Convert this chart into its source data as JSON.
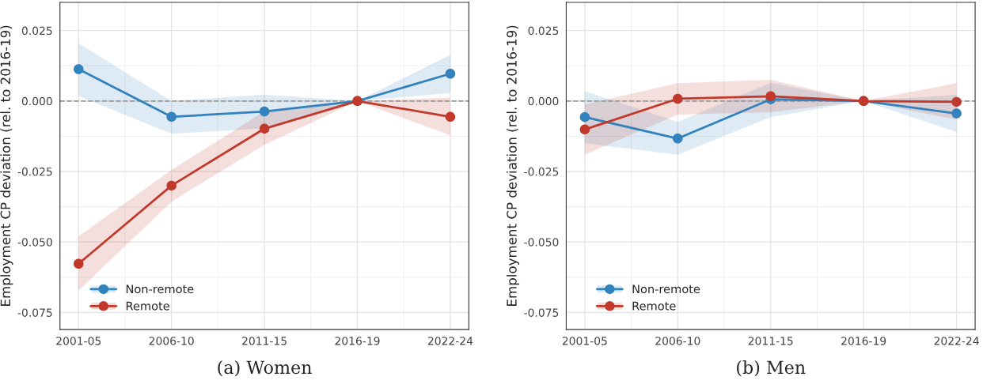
{
  "chart_data": [
    {
      "type": "line",
      "xlabel": "(a) Women",
      "ylabel": "Employment CP deviation (rel. to 2016-19)",
      "categories": [
        "2001-05",
        "2006-10",
        "2011-15",
        "2016-19",
        "2022-24"
      ],
      "ylim": [
        -0.081,
        0.035
      ],
      "yticks": [
        {
          "value": -0.075,
          "label": "-0.075"
        },
        {
          "value": -0.05,
          "label": "-0.050"
        },
        {
          "value": -0.025,
          "label": "-0.025"
        },
        {
          "value": 0,
          "label": "0.000"
        },
        {
          "value": 0.025,
          "label": "0.025"
        }
      ],
      "grid": true,
      "legend": "bottom left",
      "marker": "circle",
      "line_style": "solid",
      "ref_lines": [
        {
          "axis": "y",
          "value": 0,
          "color": "#999999",
          "line_style": "dashed"
        }
      ],
      "series": [
        {
          "name": "Non-remote",
          "color": "#3182bd",
          "values": [
            0.0113,
            -0.0056,
            -0.0037,
            0,
            0.0097
          ],
          "lower": [
            0.0018,
            -0.0116,
            -0.0097,
            0,
            0.0028
          ],
          "upper": [
            0.0205,
            0.0,
            0.0023,
            0,
            0.0164
          ]
        },
        {
          "name": "Remote",
          "color": "#c0392b",
          "values": [
            -0.0577,
            -0.03,
            -0.0098,
            0,
            -0.0056
          ],
          "lower": [
            -0.0672,
            -0.0357,
            -0.0155,
            0,
            -0.0122
          ],
          "upper": [
            -0.048,
            -0.0244,
            -0.0037,
            0,
            0.0012
          ]
        }
      ]
    },
    {
      "type": "line",
      "xlabel": "(b) Men",
      "ylabel": "Employment CP deviation (rel. to 2016-19)",
      "categories": [
        "2001-05",
        "2006-10",
        "2011-15",
        "2016-19",
        "2022-24"
      ],
      "ylim": [
        -0.081,
        0.035
      ],
      "yticks": [
        {
          "value": -0.075,
          "label": "-0.075"
        },
        {
          "value": -0.05,
          "label": "-0.050"
        },
        {
          "value": -0.025,
          "label": "-0.025"
        },
        {
          "value": 0,
          "label": "0.000"
        },
        {
          "value": 0.025,
          "label": "0.025"
        }
      ],
      "grid": true,
      "legend": "bottom left",
      "marker": "circle",
      "line_style": "solid",
      "ref_lines": [
        {
          "axis": "y",
          "value": 0,
          "color": "#999999",
          "line_style": "dashed"
        }
      ],
      "series": [
        {
          "name": "Non-remote",
          "color": "#3182bd",
          "values": [
            -0.0057,
            -0.0133,
            0.0006,
            0,
            -0.0044
          ],
          "lower": [
            -0.015,
            -0.019,
            -0.0057,
            0,
            -0.011
          ],
          "upper": [
            0.0035,
            -0.0074,
            0.0065,
            0,
            0.0022
          ]
        },
        {
          "name": "Remote",
          "color": "#c0392b",
          "values": [
            -0.0101,
            0.0008,
            0.0017,
            0,
            -0.0003
          ],
          "lower": [
            -0.019,
            -0.0048,
            -0.004,
            0,
            -0.0066
          ],
          "upper": [
            -0.0012,
            0.0063,
            0.0075,
            0,
            0.0063
          ]
        }
      ]
    }
  ]
}
